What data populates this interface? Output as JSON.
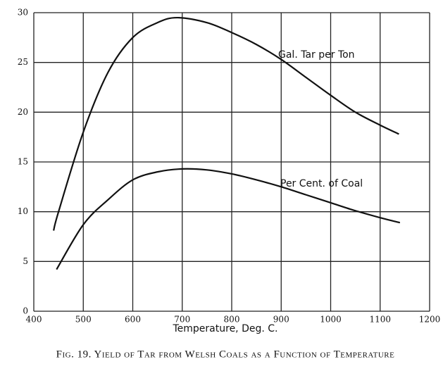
{
  "chart_data": {
    "type": "line",
    "title": "Fig. 19. Yield of Tar from Welsh Coals as a Function of Temperature",
    "x_label": "Temperature, Deg. C.",
    "series": [
      {
        "name": "Gal. Tar per Ton",
        "color": "#111111",
        "x": [
          440,
          450,
          500,
          550,
          600,
          650,
          690,
          750,
          800,
          850,
          900,
          950,
          1000,
          1050,
          1100,
          1138
        ],
        "values": [
          8.1,
          10,
          18,
          24,
          27.5,
          29,
          29.5,
          29,
          28,
          26.8,
          25.3,
          23.5,
          21.7,
          20,
          18.7,
          17.8
        ]
      },
      {
        "name": "Per Cent. of Coal",
        "color": "#111111",
        "x": [
          446,
          500,
          550,
          600,
          650,
          700,
          750,
          800,
          850,
          900,
          950,
          1000,
          1050,
          1100,
          1140
        ],
        "values": [
          4.2,
          8.7,
          11.2,
          13.2,
          14,
          14.3,
          14.2,
          13.8,
          13.2,
          12.5,
          11.7,
          10.9,
          10.1,
          9.4,
          8.9
        ]
      }
    ],
    "xlim": [
      400,
      1200
    ],
    "xticks": [
      400,
      500,
      600,
      700,
      800,
      900,
      1000,
      1100,
      1200
    ],
    "ylim": [
      0,
      30
    ],
    "yticks": [
      0,
      5,
      10,
      15,
      20,
      25,
      30
    ],
    "grid": true
  }
}
